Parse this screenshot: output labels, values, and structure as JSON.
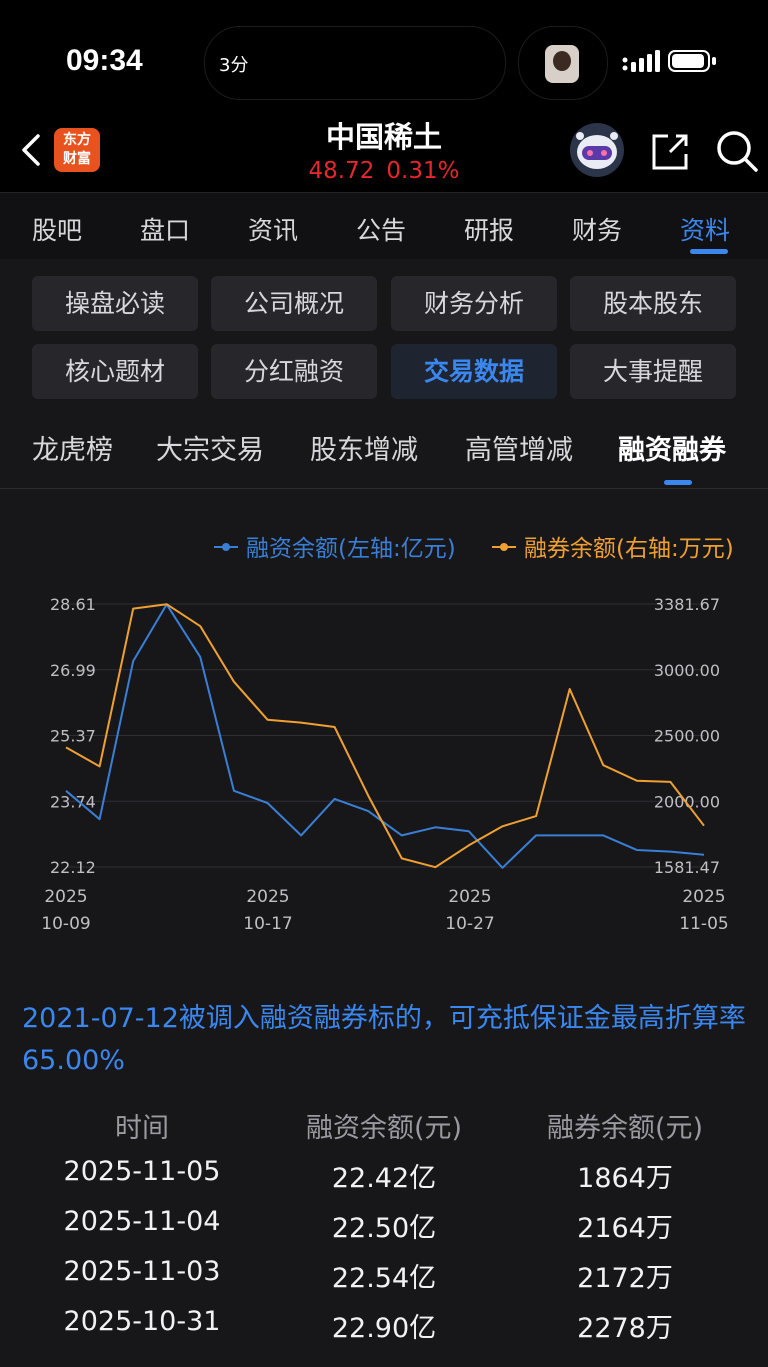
{
  "status_bar": {
    "time": "09:34",
    "island_text": "3分"
  },
  "header": {
    "logo_line1": "东方",
    "logo_line2": "财富",
    "stock_name": "中国稀土",
    "price": "48.72",
    "change": "0.31%",
    "price_color": "#e8262e"
  },
  "tabs": [
    "股吧",
    "盘口",
    "资讯",
    "公告",
    "研报",
    "财务",
    "资料"
  ],
  "active_tab": "资料",
  "sections": [
    "操盘必读",
    "公司概况",
    "财务分析",
    "股本股东",
    "核心题材",
    "分红融资",
    "交易数据",
    "大事提醒"
  ],
  "active_section": "交易数据",
  "subtabs": [
    "龙虎榜",
    "大宗交易",
    "股东增减",
    "高管增减",
    "融资融券"
  ],
  "active_subtab": "融资融券",
  "chart_data": {
    "type": "line",
    "x_labels": [
      [
        "2025",
        "10-09"
      ],
      [
        "2025",
        "10-17"
      ],
      [
        "2025",
        "10-27"
      ],
      [
        "2025",
        "11-05"
      ]
    ],
    "x": [
      "10-09",
      "10-10",
      "10-13",
      "10-14",
      "10-15",
      "10-16",
      "10-17",
      "10-20",
      "10-21",
      "10-22",
      "10-23",
      "10-24",
      "10-27",
      "10-28",
      "10-29",
      "10-30",
      "10-31",
      "11-03",
      "11-04",
      "11-05"
    ],
    "left_axis_ticks": [
      "28.61",
      "26.99",
      "25.37",
      "23.74",
      "22.12"
    ],
    "right_axis_ticks": [
      "3381.67",
      "3000.00",
      "2500.00",
      "2000.00",
      "1581.47"
    ],
    "left_range": [
      22.12,
      28.61
    ],
    "right_range": [
      1581.47,
      3381.67
    ],
    "series": [
      {
        "name": "融资余额(左轴:亿元)",
        "axis": "left",
        "color": "#3a7fd6",
        "values": [
          24.0,
          23.3,
          27.2,
          28.6,
          27.3,
          24.0,
          23.7,
          22.9,
          23.8,
          23.5,
          22.9,
          23.1,
          23.0,
          22.1,
          22.9,
          22.9,
          22.9,
          22.54,
          22.5,
          22.42
        ]
      },
      {
        "name": "融券余额(右轴:万元)",
        "axis": "right",
        "color": "#f0a030",
        "values": [
          2400,
          2270,
          3350,
          3380,
          3230,
          2850,
          2590,
          2570,
          2540,
          2070,
          1640,
          1580,
          1730,
          1860,
          1930,
          2800,
          2278,
          2172,
          2164,
          1864
        ]
      }
    ],
    "grid": true,
    "legend": "top-right"
  },
  "note": "2021-07-12被调入融资融券标的，可充抵保证金最高折算率65.00%",
  "table": {
    "headers": [
      "时间",
      "融资余额(元)",
      "融券余额(元)"
    ],
    "rows": [
      [
        "2025-11-05",
        "22.42亿",
        "1864万"
      ],
      [
        "2025-11-04",
        "22.50亿",
        "2164万"
      ],
      [
        "2025-11-03",
        "22.54亿",
        "2172万"
      ],
      [
        "2025-10-31",
        "22.90亿",
        "2278万"
      ]
    ]
  }
}
